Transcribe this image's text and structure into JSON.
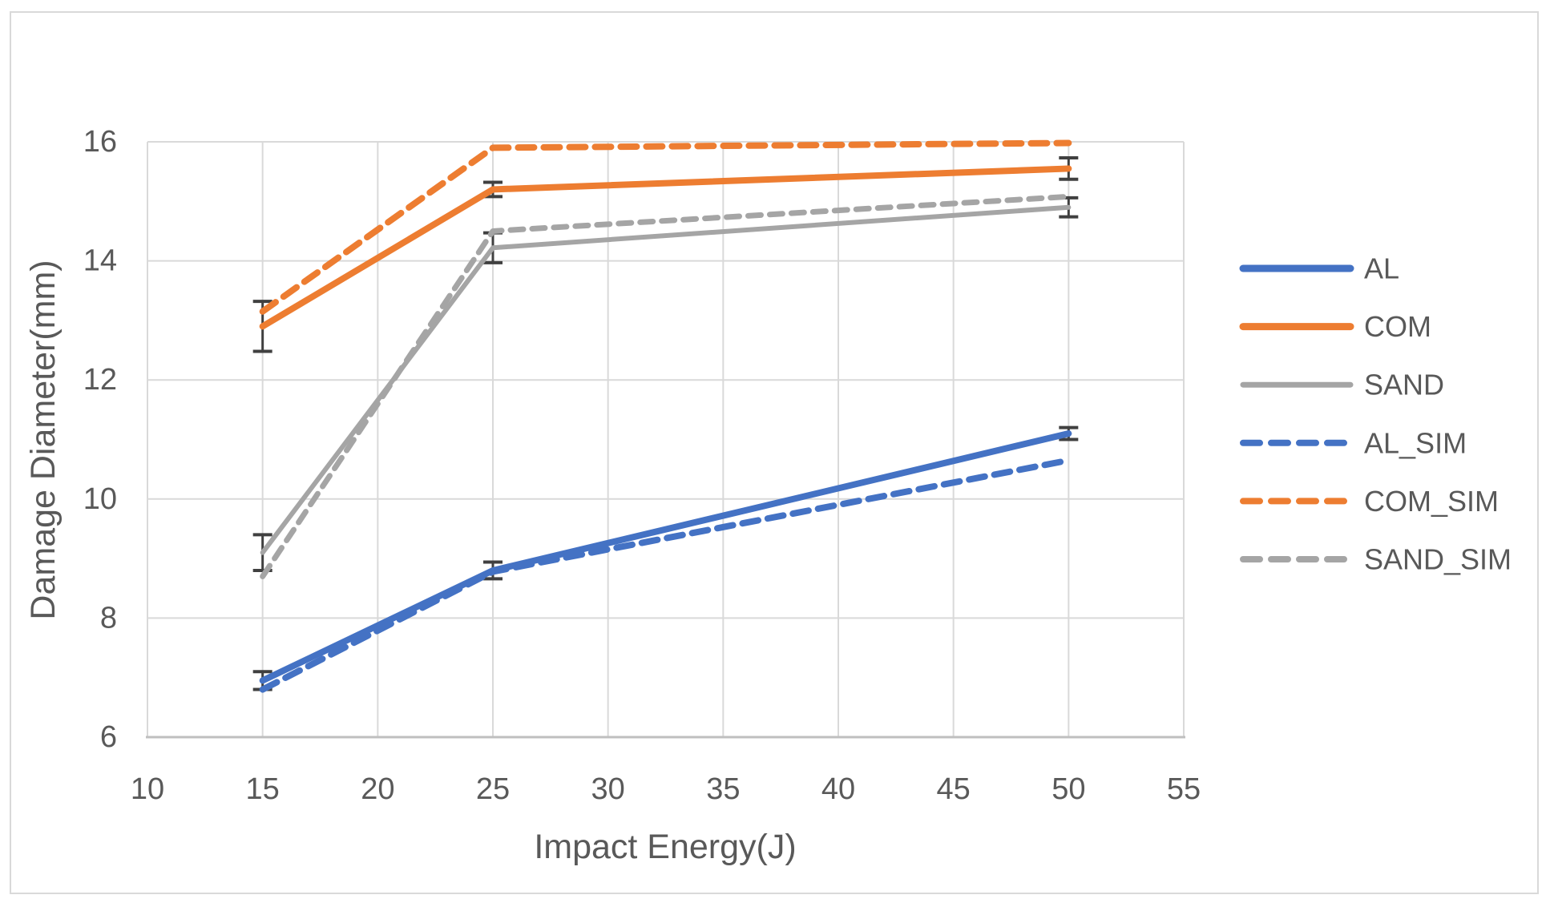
{
  "chart_data": {
    "type": "line",
    "title": "",
    "xlabel": "Impact Energy(J)",
    "ylabel": "Damage Diameter(mm)",
    "xlim": [
      10,
      55
    ],
    "ylim": [
      6,
      16
    ],
    "x_ticks": [
      10,
      15,
      20,
      25,
      30,
      35,
      40,
      45,
      50,
      55
    ],
    "y_ticks": [
      6,
      8,
      10,
      12,
      14,
      16
    ],
    "grid": true,
    "legend_position": "right",
    "x": [
      15,
      25,
      50
    ],
    "series": [
      {
        "name": "AL",
        "style": "solid",
        "color": "#4472C4",
        "values": [
          6.95,
          8.8,
          11.1
        ],
        "err": [
          0.15,
          0.14,
          0.1
        ]
      },
      {
        "name": "COM",
        "style": "solid",
        "color": "#ED7D31",
        "values": [
          12.9,
          15.2,
          15.55
        ],
        "err": [
          0.42,
          0.12,
          0.18
        ]
      },
      {
        "name": "SAND",
        "style": "solid",
        "color": "#A5A5A5",
        "values": [
          9.1,
          14.22,
          14.9
        ],
        "err": [
          0.3,
          0.25,
          0.16
        ]
      },
      {
        "name": "AL_SIM",
        "style": "dashed",
        "color": "#4472C4",
        "values": [
          6.8,
          8.78,
          10.65
        ]
      },
      {
        "name": "COM_SIM",
        "style": "dashed",
        "color": "#ED7D31",
        "values": [
          13.15,
          15.9,
          15.98
        ]
      },
      {
        "name": "SAND_SIM",
        "style": "dashed",
        "color": "#A5A5A5",
        "values": [
          8.7,
          14.5,
          15.08
        ]
      }
    ],
    "colors": {
      "gridline": "#d9d9d9",
      "axis_line": "#bfbfbf",
      "error_bar": "#404040",
      "text": "#595959"
    }
  }
}
